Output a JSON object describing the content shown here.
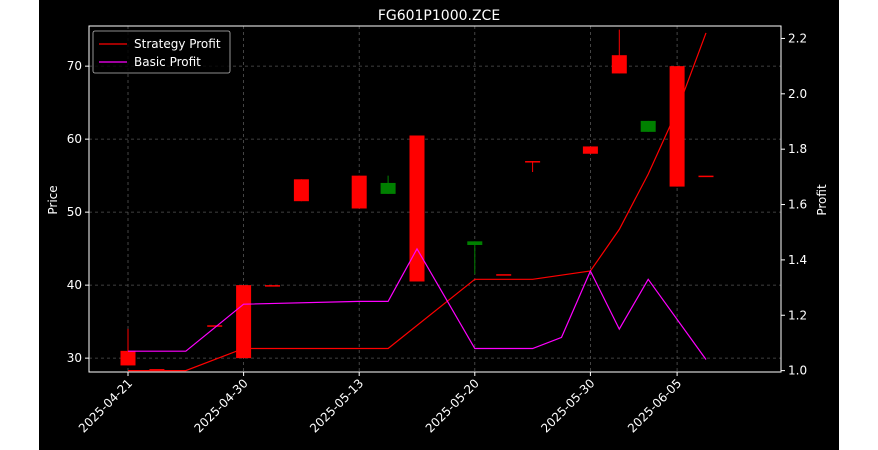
{
  "chart_data": {
    "type": "candlestick",
    "title": "FG601P1000.ZCE",
    "xlabel": "",
    "ylabel_left": "Price",
    "ylabel_right": "Profit",
    "background": "#000000",
    "grid": true,
    "legend_position": "top-left",
    "x_dates": [
      "2025-04-21",
      "2025-04-24",
      "2025-04-25",
      "2025-04-28",
      "2025-04-30",
      "2025-05-07",
      "2025-05-08",
      "2025-05-09",
      "2025-05-13",
      "2025-05-14",
      "2025-05-15",
      "2025-05-16",
      "2025-05-20",
      "2025-05-22",
      "2025-05-28",
      "2025-05-29",
      "2025-05-30",
      "2025-06-03",
      "2025-06-04",
      "2025-06-05",
      "2025-06-06"
    ],
    "x_tick_labels": [
      "2025-04-21",
      "2025-04-30",
      "2025-05-13",
      "2025-05-20",
      "2025-05-30",
      "2025-06-05"
    ],
    "left_axis": {
      "ticks": [
        30,
        40,
        50,
        60,
        70
      ],
      "range": [
        28.1,
        75.5
      ]
    },
    "right_axis": {
      "ticks": [
        1.0,
        1.2,
        1.4,
        1.6,
        1.8,
        2.0,
        2.2
      ],
      "range": [
        0.995,
        2.245
      ]
    },
    "candles": [
      {
        "date": "2025-04-21",
        "open": 31.0,
        "close": 29.0,
        "high": 34.0,
        "low": 29.0,
        "color": "#ff0000"
      },
      {
        "date": "2025-04-24",
        "open": 28.5,
        "close": 28.5,
        "high": 28.5,
        "low": 28.5,
        "color": "#ff0000"
      },
      {
        "date": "2025-04-28",
        "open": 34.5,
        "close": 34.5,
        "high": 34.5,
        "low": 34.5,
        "color": "#ff0000"
      },
      {
        "date": "2025-04-30",
        "open": 40.0,
        "close": 30.0,
        "high": 40.0,
        "low": 30.0,
        "color": "#ff0000"
      },
      {
        "date": "2025-05-07",
        "open": 40.0,
        "close": 40.0,
        "high": 40.0,
        "low": 40.0,
        "color": "#ff0000"
      },
      {
        "date": "2025-05-08",
        "open": 54.5,
        "close": 51.5,
        "high": 54.5,
        "low": 51.5,
        "color": "#ff0000"
      },
      {
        "date": "2025-05-13",
        "open": 55.0,
        "close": 50.5,
        "high": 55.0,
        "low": 50.5,
        "color": "#ff0000"
      },
      {
        "date": "2025-05-14",
        "open": 52.5,
        "close": 54.0,
        "high": 55.0,
        "low": 52.5,
        "color": "#008000"
      },
      {
        "date": "2025-05-15",
        "open": 60.5,
        "close": 40.5,
        "high": 60.5,
        "low": 40.5,
        "color": "#ff0000"
      },
      {
        "date": "2025-05-20",
        "open": 45.5,
        "close": 46.0,
        "high": 46.0,
        "low": 41.5,
        "color": "#008000"
      },
      {
        "date": "2025-05-22",
        "open": 41.5,
        "close": 41.5,
        "high": 41.5,
        "low": 41.5,
        "color": "#ff0000"
      },
      {
        "date": "2025-05-28",
        "open": 57.0,
        "close": 57.0,
        "high": 57.0,
        "low": 55.5,
        "color": "#ff0000"
      },
      {
        "date": "2025-05-30",
        "open": 59.0,
        "close": 58.0,
        "high": 59.0,
        "low": 58.0,
        "color": "#ff0000"
      },
      {
        "date": "2025-06-03",
        "open": 71.5,
        "close": 69.0,
        "high": 75.0,
        "low": 69.0,
        "color": "#ff0000"
      },
      {
        "date": "2025-06-04",
        "open": 61.0,
        "close": 62.5,
        "high": 62.5,
        "low": 61.0,
        "color": "#008000"
      },
      {
        "date": "2025-06-05",
        "open": 70.0,
        "close": 53.5,
        "high": 70.0,
        "low": 53.5,
        "color": "#ff0000"
      },
      {
        "date": "2025-06-06",
        "open": 55.0,
        "close": 55.0,
        "high": 55.0,
        "low": 55.0,
        "color": "#ff0000"
      }
    ],
    "series": [
      {
        "name": "Strategy Profit",
        "axis": "right",
        "color": "#ff0000",
        "points": [
          [
            "2025-04-21",
            1.0
          ],
          [
            "2025-04-25",
            1.0
          ],
          [
            "2025-04-30",
            1.08
          ],
          [
            "2025-05-13",
            1.08
          ],
          [
            "2025-05-14",
            1.08
          ],
          [
            "2025-05-20",
            1.33
          ],
          [
            "2025-05-28",
            1.33
          ],
          [
            "2025-05-30",
            1.36
          ],
          [
            "2025-06-03",
            1.51
          ],
          [
            "2025-06-04",
            1.71
          ],
          [
            "2025-06-05",
            1.94
          ],
          [
            "2025-06-06",
            2.22
          ]
        ]
      },
      {
        "name": "Basic Profit",
        "axis": "right",
        "color": "#ff00ff",
        "points": [
          [
            "2025-04-21",
            1.07
          ],
          [
            "2025-04-25",
            1.07
          ],
          [
            "2025-04-30",
            1.24
          ],
          [
            "2025-05-13",
            1.25
          ],
          [
            "2025-05-14",
            1.25
          ],
          [
            "2025-05-15",
            1.44
          ],
          [
            "2025-05-20",
            1.08
          ],
          [
            "2025-05-28",
            1.08
          ],
          [
            "2025-05-29",
            1.12
          ],
          [
            "2025-05-30",
            1.36
          ],
          [
            "2025-06-03",
            1.15
          ],
          [
            "2025-06-04",
            1.33
          ],
          [
            "2025-06-06",
            1.04
          ]
        ]
      }
    ]
  }
}
